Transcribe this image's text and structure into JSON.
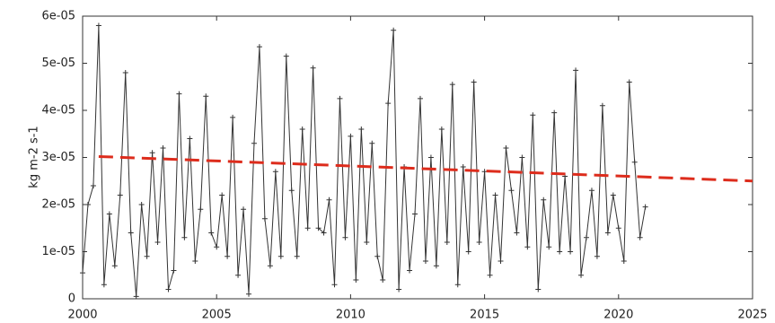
{
  "chart_data": {
    "type": "line",
    "ylabel": "kg m-2 s-1",
    "xlim": [
      2000,
      2025
    ],
    "xticks": [
      2000,
      2005,
      2010,
      2015,
      2020,
      2025
    ],
    "ylim": [
      0,
      6e-05
    ],
    "yticks": [
      0,
      {
        "value": 1e-05,
        "label": "1e-05"
      },
      {
        "value": 2e-05,
        "label": "2e-05"
      },
      {
        "value": 3e-05,
        "label": "3e-05"
      },
      {
        "value": 4e-05,
        "label": "4e-05"
      },
      {
        "value": 5e-05,
        "label": "5e-05"
      },
      {
        "value": 6e-05,
        "label": "6e-05"
      }
    ],
    "series": [
      {
        "color": "#333333",
        "marker": "+",
        "x": [
          2000,
          2000.2,
          2000.4,
          2000.6,
          2000.8,
          2001,
          2001.2,
          2001.4,
          2001.6,
          2001.8,
          2002,
          2002.2,
          2002.4,
          2002.6,
          2002.8,
          2003,
          2003.2,
          2003.4,
          2003.6,
          2003.8,
          2004,
          2004.2,
          2004.4,
          2004.6,
          2004.8,
          2005,
          2005.2,
          2005.4,
          2005.6,
          2005.8,
          2006,
          2006.2,
          2006.4,
          2006.6,
          2006.8,
          2007,
          2007.2,
          2007.4,
          2007.6,
          2007.8,
          2008,
          2008.2,
          2008.4,
          2008.6,
          2008.8,
          2009,
          2009.2,
          2009.4,
          2009.6,
          2009.8,
          2010,
          2010.2,
          2010.4,
          2010.6,
          2010.8,
          2011,
          2011.2,
          2011.4,
          2011.6,
          2011.8,
          2012,
          2012.2,
          2012.4,
          2012.6,
          2012.8,
          2013,
          2013.2,
          2013.4,
          2013.6,
          2013.8,
          2014,
          2014.2,
          2014.4,
          2014.6,
          2014.8,
          2015,
          2015.2,
          2015.4,
          2015.6,
          2015.8,
          2016,
          2016.2,
          2016.4,
          2016.6,
          2016.8,
          2017,
          2017.2,
          2017.4,
          2017.6,
          2017.8,
          2018,
          2018.2,
          2018.4,
          2018.6,
          2018.8,
          2019,
          2019.2,
          2019.4,
          2019.6,
          2019.8,
          2020,
          2020.2,
          2020.4,
          2020.6,
          2020.8,
          2021
        ],
        "values": [
          5.5e-06,
          2e-05,
          2.4e-05,
          5.8e-05,
          3e-06,
          1.8e-05,
          7e-06,
          2.2e-05,
          4.8e-05,
          1.4e-05,
          5e-07,
          2e-05,
          9e-06,
          3.1e-05,
          1.2e-05,
          3.2e-05,
          2e-06,
          6e-06,
          4.35e-05,
          1.3e-05,
          3.4e-05,
          8e-06,
          1.9e-05,
          4.3e-05,
          1.4e-05,
          1.1e-05,
          2.2e-05,
          9e-06,
          3.85e-05,
          5e-06,
          1.9e-05,
          1e-06,
          3.3e-05,
          5.35e-05,
          1.7e-05,
          7e-06,
          2.7e-05,
          9e-06,
          5.15e-05,
          2.3e-05,
          9e-06,
          3.6e-05,
          1.5e-05,
          4.9e-05,
          1.5e-05,
          1.4e-05,
          2.1e-05,
          3e-06,
          4.25e-05,
          1.3e-05,
          3.45e-05,
          4e-06,
          3.6e-05,
          1.2e-05,
          3.3e-05,
          9e-06,
          4e-06,
          4.15e-05,
          5.7e-05,
          2e-06,
          2.8e-05,
          6e-06,
          1.8e-05,
          4.25e-05,
          8e-06,
          3e-05,
          7e-06,
          3.6e-05,
          1.2e-05,
          4.55e-05,
          3e-06,
          2.8e-05,
          1e-05,
          4.6e-05,
          1.2e-05,
          2.7e-05,
          5e-06,
          2.2e-05,
          8e-06,
          3.2e-05,
          2.3e-05,
          1.4e-05,
          3e-05,
          1.1e-05,
          3.9e-05,
          2e-06,
          2.1e-05,
          1.1e-05,
          3.95e-05,
          1e-05,
          2.6e-05,
          1e-05,
          4.85e-05,
          5e-06,
          1.3e-05,
          2.3e-05,
          9e-06,
          4.1e-05,
          1.4e-05,
          2.2e-05,
          1.5e-05,
          8e-06,
          4.6e-05,
          2.9e-05,
          1.3e-05,
          1.95e-05
        ]
      },
      {
        "color": "#dd2c1c",
        "dashed": true,
        "x": [
          2000.6,
          2025
        ],
        "values": [
          3.02e-05,
          2.5e-05
        ]
      }
    ]
  }
}
